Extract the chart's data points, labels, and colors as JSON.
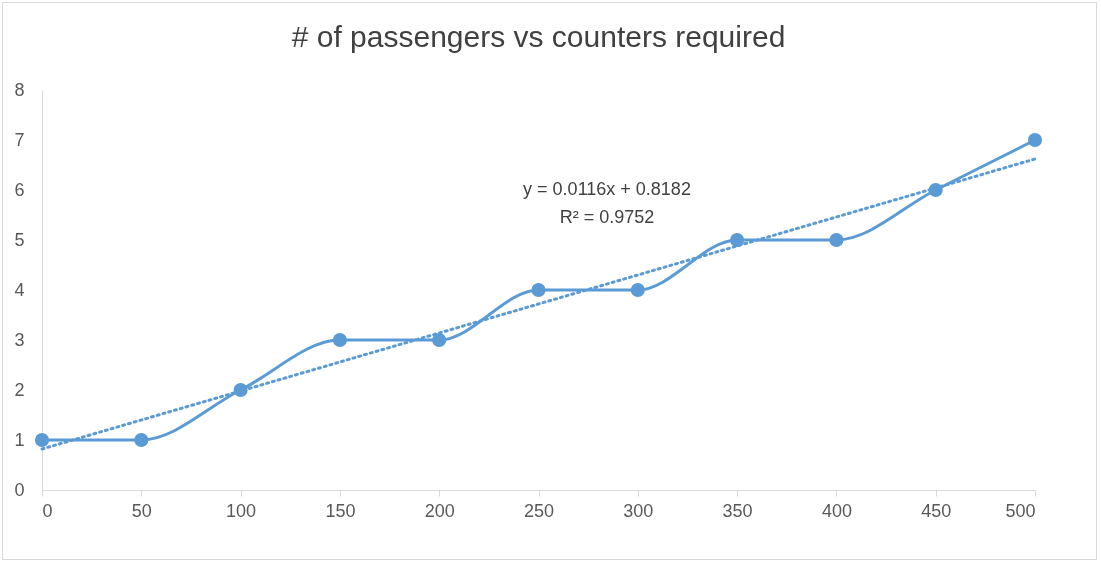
{
  "chart_data": {
    "type": "line",
    "title": "# of passengers vs counters required",
    "x": [
      0,
      50,
      100,
      150,
      200,
      250,
      300,
      350,
      400,
      450,
      500
    ],
    "series": [
      {
        "color": "#5b9bd5",
        "values": [
          1,
          1,
          2,
          3,
          3,
          4,
          4,
          5,
          5,
          6,
          7
        ],
        "marker": "circle",
        "line_style": "solid"
      },
      {
        "type": "line",
        "color": "#5b9bd5",
        "x": [
          0,
          500
        ],
        "values": [
          0.82,
          6.62
        ],
        "marker": "none",
        "line_style": "dotted"
      }
    ],
    "annotations": [
      "y = 0.0116x + 0.8182",
      "R² = 0.9752"
    ],
    "xlim": [
      0,
      500
    ],
    "xticks": [
      0,
      50,
      100,
      150,
      200,
      250,
      300,
      350,
      400,
      450,
      500
    ],
    "ylim": [
      0,
      8
    ],
    "yticks": [
      0,
      1,
      2,
      3,
      4,
      5,
      6,
      7,
      8
    ],
    "grid": false
  }
}
